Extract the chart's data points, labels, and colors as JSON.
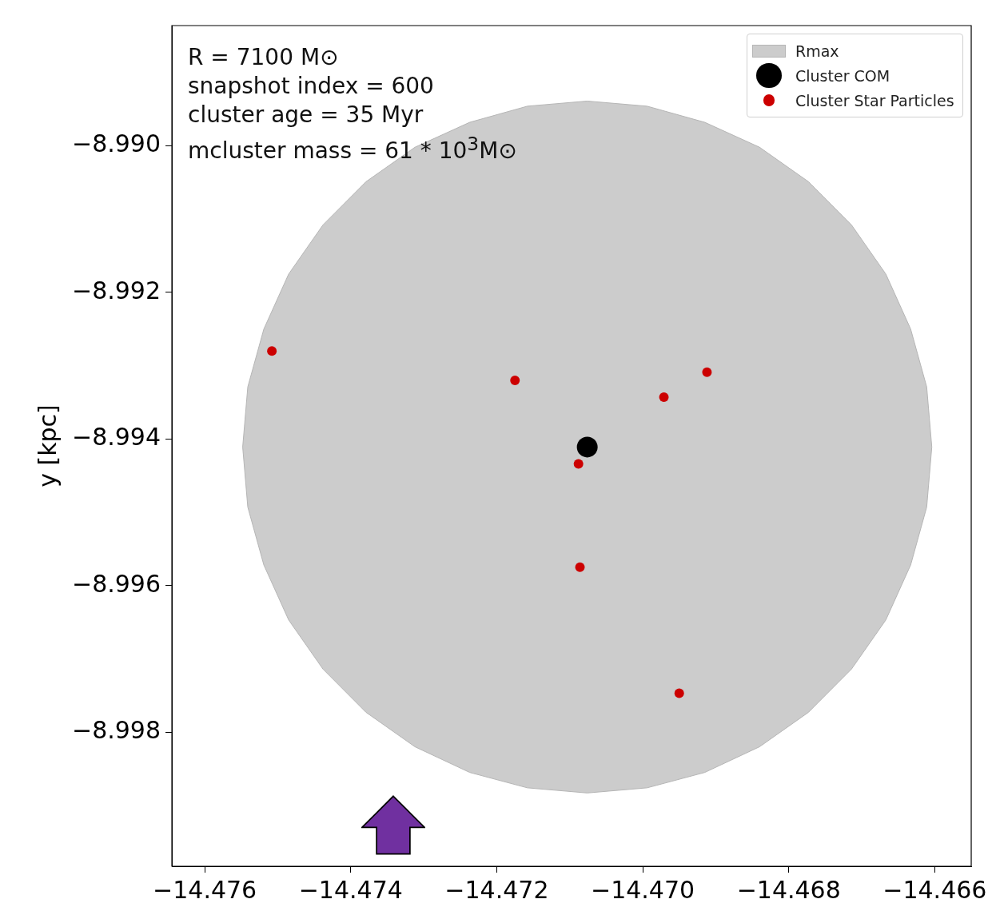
{
  "chart_data": {
    "type": "scatter",
    "ylabel": "y [kpc]",
    "annotations": [
      "R = 7100 M⊙",
      "snapshot index = 600",
      "cluster age = 35 Myr",
      "mcluster mass = 61 * 10$^{3}$M⊙"
    ],
    "xlim": [
      -14.47645,
      -14.4655
    ],
    "ylim": [
      -8.99983,
      -8.98836
    ],
    "xticks": [
      {
        "value": -14.476,
        "label": "−14.476"
      },
      {
        "value": -14.474,
        "label": "−14.474"
      },
      {
        "value": -14.472,
        "label": "−14.472"
      },
      {
        "value": -14.47,
        "label": "−14.470"
      },
      {
        "value": -14.468,
        "label": "−14.468"
      },
      {
        "value": -14.466,
        "label": "−14.466"
      }
    ],
    "yticks": [
      {
        "value": -8.998,
        "label": "−8.998"
      },
      {
        "value": -8.996,
        "label": "−8.996"
      },
      {
        "value": -8.994,
        "label": "−8.994"
      },
      {
        "value": -8.992,
        "label": "−8.992"
      },
      {
        "value": -8.99,
        "label": "−8.990"
      }
    ],
    "grid": false,
    "legend": "top right",
    "series": [
      {
        "name": "Rmax",
        "type": "area",
        "color": "#cccccc",
        "x": [
          -14.46604,
          -14.46611,
          -14.46633,
          -14.46667,
          -14.46714,
          -14.46773,
          -14.4684,
          -14.46915,
          -14.46994,
          -14.47076,
          -14.47158,
          -14.47237,
          -14.47312,
          -14.47379,
          -14.47438,
          -14.47485,
          -14.47519,
          -14.47541,
          -14.47548,
          -14.47541,
          -14.47519,
          -14.47485,
          -14.47438,
          -14.47379,
          -14.47312,
          -14.47237,
          -14.47158,
          -14.47076,
          -14.46994,
          -14.46915,
          -14.4684,
          -14.46773,
          -14.46714,
          -14.46667,
          -14.46633,
          -14.46611,
          -14.46604
        ],
        "values": [
          -8.99411,
          -8.99329,
          -8.9925,
          -8.99175,
          -8.99108,
          -8.99049,
          -8.99002,
          -8.98968,
          -8.98946,
          -8.98939,
          -8.98946,
          -8.98968,
          -8.99002,
          -8.99049,
          -8.99108,
          -8.99175,
          -8.9925,
          -8.99329,
          -8.99411,
          -8.99493,
          -8.99572,
          -8.99647,
          -8.99714,
          -8.99773,
          -8.9982,
          -8.99855,
          -8.99876,
          -8.99883,
          -8.99876,
          -8.99855,
          -8.9982,
          -8.99773,
          -8.99714,
          -8.99647,
          -8.99572,
          -8.99493,
          -8.99411
        ]
      },
      {
        "name": "Cluster COM",
        "type": "scatter",
        "marker": "circle",
        "color": "#000000",
        "x": [
          -14.47076
        ],
        "values": [
          -8.99411
        ]
      },
      {
        "name": "Cluster Star Particles",
        "type": "scatter",
        "marker": "circle",
        "color": "#cc0000",
        "x": [
          -14.47508,
          -14.47175,
          -14.46971,
          -14.46912,
          -14.47088,
          -14.47086,
          -14.4695
        ],
        "values": [
          -8.9928,
          -8.9932,
          -8.99343,
          -8.99309,
          -8.99434,
          -8.99575,
          -8.99747
        ]
      }
    ]
  }
}
